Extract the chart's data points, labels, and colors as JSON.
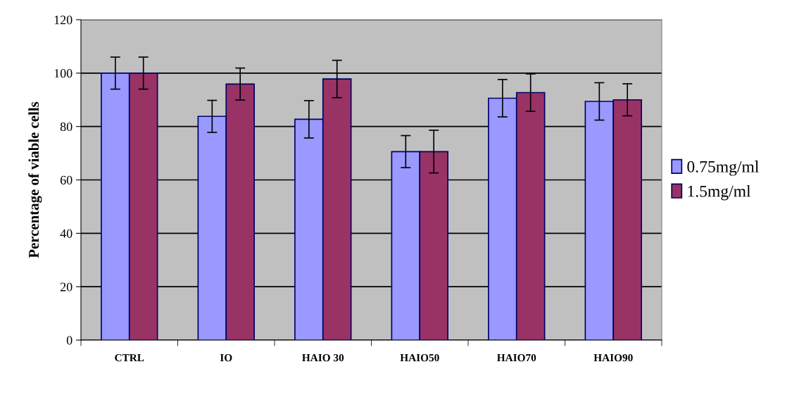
{
  "chart_data": {
    "type": "bar",
    "ylabel": "Percentage of viable cells",
    "categories": [
      "CTRL",
      "IO",
      "HAIO 30",
      "HAIO50",
      "HAIO70",
      "HAIO90"
    ],
    "series": [
      {
        "name": "0.75mg/ml",
        "color": "#9999ff",
        "values": [
          100,
          83.8,
          82.7,
          70.6,
          90.6,
          89.4
        ],
        "errors": [
          6,
          6,
          7,
          6,
          7,
          7
        ]
      },
      {
        "name": "1.5mg/ml",
        "color": "#993366",
        "values": [
          100,
          95.9,
          97.8,
          70.6,
          92.7,
          90
        ],
        "errors": [
          6,
          6,
          7,
          8,
          7,
          6
        ]
      }
    ],
    "ylim": [
      0,
      120
    ],
    "yticks": [
      0,
      20,
      40,
      60,
      80,
      100,
      120
    ],
    "grid": "y",
    "legend": "right"
  }
}
